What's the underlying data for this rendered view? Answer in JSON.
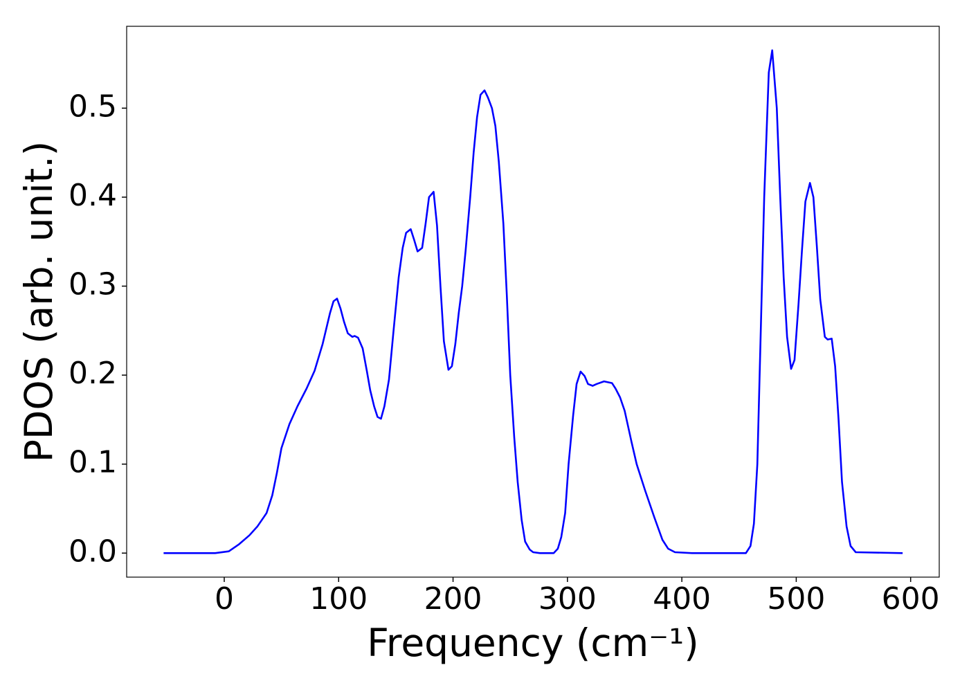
{
  "chart_data": {
    "type": "line",
    "x_label": "Frequency (cm⁻¹)",
    "y_label": "PDOS (arb. unit.)",
    "xlim": [
      -85.3,
      625
    ],
    "ylim": [
      -0.027,
      0.592
    ],
    "xticks": [
      0,
      100,
      200,
      300,
      400,
      500,
      600
    ],
    "yticks": [
      {
        "value": 0,
        "label": "0.0"
      },
      0.1,
      0.2,
      0.3,
      0.4,
      0.5
    ],
    "grid": false,
    "x": [
      -53,
      -8,
      4,
      13,
      22,
      29,
      37,
      42,
      46,
      50,
      57,
      64,
      72,
      79,
      86,
      92.5,
      95.5,
      98.6,
      101.6,
      104.7,
      108,
      112,
      114,
      117,
      121,
      124.6,
      127.6,
      131,
      134,
      137,
      140,
      144,
      148,
      152.5,
      156,
      159,
      163,
      166,
      169,
      173,
      176,
      179,
      183,
      186,
      189,
      192,
      196,
      199,
      202,
      205,
      208,
      211,
      215,
      218,
      221,
      224,
      227.5,
      230.5,
      234,
      237,
      240,
      244,
      247,
      250,
      253.5,
      256.5,
      260,
      263,
      267,
      270,
      276,
      288,
      291.6,
      294.6,
      298,
      301,
      305,
      308,
      311.5,
      315,
      318,
      322,
      325.5,
      332,
      339,
      342,
      346,
      350,
      356,
      360.5,
      368,
      376,
      383,
      388,
      394,
      409,
      456,
      460,
      463,
      466,
      469,
      472,
      476,
      479,
      483,
      486,
      489,
      492,
      495.5,
      498.5,
      502,
      505,
      508,
      512,
      515,
      518,
      521,
      525,
      527.5,
      531,
      534,
      537,
      540,
      544,
      547.5,
      552,
      593
    ],
    "series": [
      {
        "name": "PDOS",
        "color": "#0000ff",
        "values": [
          0,
          0,
          0.002,
          0.01,
          0.02,
          0.03,
          0.045,
          0.065,
          0.09,
          0.118,
          0.145,
          0.165,
          0.185,
          0.205,
          0.235,
          0.27,
          0.283,
          0.286,
          0.275,
          0.26,
          0.247,
          0.243,
          0.244,
          0.242,
          0.23,
          0.205,
          0.183,
          0.165,
          0.153,
          0.151,
          0.165,
          0.195,
          0.25,
          0.31,
          0.343,
          0.36,
          0.364,
          0.352,
          0.339,
          0.343,
          0.37,
          0.4,
          0.406,
          0.368,
          0.3,
          0.238,
          0.206,
          0.21,
          0.235,
          0.27,
          0.3,
          0.34,
          0.4,
          0.45,
          0.49,
          0.515,
          0.52,
          0.512,
          0.5,
          0.48,
          0.44,
          0.37,
          0.29,
          0.2,
          0.13,
          0.08,
          0.037,
          0.013,
          0.004,
          0.001,
          0,
          0,
          0.005,
          0.018,
          0.045,
          0.1,
          0.155,
          0.19,
          0.204,
          0.199,
          0.19,
          0.188,
          0.19,
          0.193,
          0.191,
          0.185,
          0.175,
          0.16,
          0.125,
          0.1,
          0.07,
          0.04,
          0.015,
          0.005,
          0.001,
          0,
          0,
          0.008,
          0.033,
          0.1,
          0.25,
          0.4,
          0.54,
          0.565,
          0.5,
          0.4,
          0.31,
          0.243,
          0.207,
          0.217,
          0.28,
          0.34,
          0.395,
          0.416,
          0.4,
          0.345,
          0.285,
          0.243,
          0.24,
          0.241,
          0.21,
          0.15,
          0.08,
          0.03,
          0.008,
          0.001,
          0
        ]
      }
    ]
  }
}
